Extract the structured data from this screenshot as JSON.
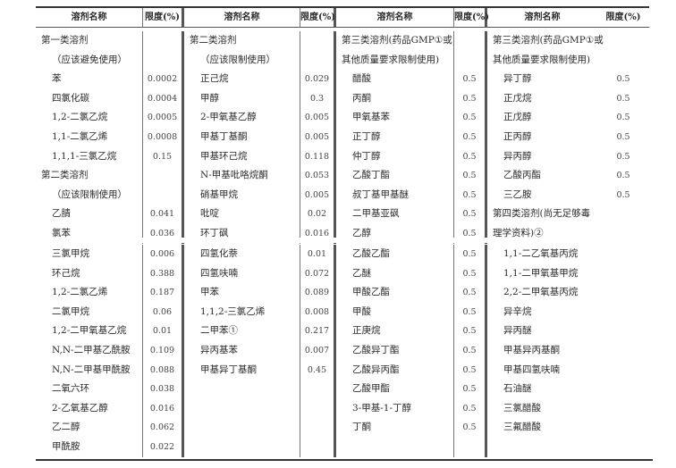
{
  "header": [
    "溶剂名称",
    "限度(%)",
    "溶剂名称",
    "限度(%)",
    "溶剂名称",
    "限度(%)",
    "溶剂名称",
    "限度(%)"
  ],
  "sections": [
    {
      "columns": [
        [
          {
            "name": "第一类溶剂",
            "h": 1
          },
          {
            "name": "（应该避免使用）"
          },
          {
            "name": "苯",
            "limit": "0.0002"
          },
          {
            "name": "四氯化碳",
            "limit": "0.0004"
          },
          {
            "name": "1,2-二氯乙烷",
            "limit": "0.0005"
          },
          {
            "name": "1,1-二氯乙烯",
            "limit": "0.0008"
          },
          {
            "name": "1,1,1-三氯乙烷",
            "limit": "0.15"
          },
          {
            "name": "第二类溶剂",
            "h": 1
          },
          {
            "name": "（应该限制使用）"
          },
          {
            "name": "乙腈",
            "limit": "0.041"
          },
          {
            "name": "氯苯",
            "limit": "0.036"
          }
        ],
        [
          {
            "name": "第二类溶剂",
            "h": 1
          },
          {
            "name": "（应该限制使用）"
          },
          {
            "name": "正己烷",
            "limit": "0.029"
          },
          {
            "name": "甲醇",
            "limit": "0.3"
          },
          {
            "name": "2-甲氧基乙醇",
            "limit": "0.005"
          },
          {
            "name": "甲基丁基酮",
            "limit": "0.005"
          },
          {
            "name": "甲基环己烷",
            "limit": "0.118"
          },
          {
            "name": "N-甲基吡咯烷酮",
            "limit": "0.053"
          },
          {
            "name": "硝基甲烷",
            "limit": "0.005"
          },
          {
            "name": "吡啶",
            "limit": "0.02"
          },
          {
            "name": "环丁砜",
            "limit": "0.016"
          }
        ],
        [
          {
            "name": "第三类溶剂(药品GMP①或",
            "h": 1
          },
          {
            "name": "其他质量要求限制使用)",
            "h": 1
          },
          {
            "name": "醋酸",
            "limit": "0.5"
          },
          {
            "name": "丙酮",
            "limit": "0.5"
          },
          {
            "name": "甲氧基苯",
            "limit": "0.5"
          },
          {
            "name": "正丁醇",
            "limit": "0.5"
          },
          {
            "name": "仲丁醇",
            "limit": "0.5"
          },
          {
            "name": "乙酸丁酯",
            "limit": "0.5"
          },
          {
            "name": "叔丁基甲基醚",
            "limit": "0.5"
          },
          {
            "name": "二甲基亚砜",
            "limit": "0.5"
          },
          {
            "name": "乙醇",
            "limit": "0.5"
          }
        ],
        [
          {
            "name": "第三类溶剂(药品GMP①或",
            "h": 1
          },
          {
            "name": "其他质量要求限制使用)",
            "h": 1
          },
          {
            "name": "异丁醇",
            "limit": "0.5"
          },
          {
            "name": "正戊烷",
            "limit": "0.5"
          },
          {
            "name": "正戊醇",
            "limit": "0.5"
          },
          {
            "name": "正丙醇",
            "limit": "0.5"
          },
          {
            "name": "异丙醇",
            "limit": "0.5"
          },
          {
            "name": "乙酸丙酯",
            "limit": "0.5"
          },
          {
            "name": "三乙胺",
            "limit": "0.5"
          },
          {
            "name": "第四类溶剂(尚无足够毒",
            "h": 1
          },
          {
            "name": "理学资料)②",
            "h": 1
          }
        ]
      ]
    },
    {
      "columns": [
        [
          {
            "name": "三氯甲烷",
            "limit": "0.006"
          },
          {
            "name": "环己烷",
            "limit": "0.388"
          },
          {
            "name": "1,2-二氯乙烯",
            "limit": "0.187"
          },
          {
            "name": "二氯甲烷",
            "limit": "0.06"
          },
          {
            "name": "1,2-二甲氧基乙烷",
            "limit": "0.01"
          },
          {
            "name": "N,N-二甲基乙酰胺",
            "limit": "0.109"
          },
          {
            "name": "N,N-二甲基甲酰胺",
            "limit": "0.088"
          },
          {
            "name": "二氧六环",
            "limit": "0.038"
          },
          {
            "name": "2-乙氧基乙醇",
            "limit": "0.016"
          },
          {
            "name": "乙二醇",
            "limit": "0.062"
          },
          {
            "name": "甲酰胺",
            "limit": "0.022"
          }
        ],
        [
          {
            "name": "四氢化萘",
            "limit": "0.01"
          },
          {
            "name": "四氢呋喃",
            "limit": "0.072"
          },
          {
            "name": "甲苯",
            "limit": "0.089"
          },
          {
            "name": "1,1,2-三氯乙烯",
            "limit": "0.008"
          },
          {
            "name": "二甲苯①",
            "limit": "0.217"
          },
          {
            "name": "异丙基苯",
            "limit": "0.007"
          },
          {
            "name": "甲基异丁基酮",
            "limit": "0.45"
          }
        ],
        [
          {
            "name": "乙酸乙酯",
            "limit": "0.5"
          },
          {
            "name": "乙醚",
            "limit": "0.5"
          },
          {
            "name": "甲酸乙酯",
            "limit": "0.5"
          },
          {
            "name": "甲酸",
            "limit": "0.5"
          },
          {
            "name": "正庚烷",
            "limit": "0.5"
          },
          {
            "name": "乙酸异丁酯",
            "limit": "0.5"
          },
          {
            "name": "乙酸异丙酯",
            "limit": "0.5"
          },
          {
            "name": "乙酸甲酯",
            "limit": "0.5"
          },
          {
            "name": "3-甲基-1-丁醇",
            "limit": "0.5"
          },
          {
            "name": "丁酮",
            "limit": "0.5"
          }
        ],
        [
          {
            "name": "1,1-二乙氧基丙烷"
          },
          {
            "name": "1,1-二甲氧基甲烷"
          },
          {
            "name": "2,2-二甲氧基丙烷"
          },
          {
            "name": "异辛烷"
          },
          {
            "name": "异丙醚"
          },
          {
            "name": "甲基异丙基酮"
          },
          {
            "name": "甲基四氢呋喃"
          },
          {
            "name": "石油醚"
          },
          {
            "name": "三氯醋酸"
          },
          {
            "name": "三氟醋酸"
          }
        ]
      ]
    }
  ]
}
